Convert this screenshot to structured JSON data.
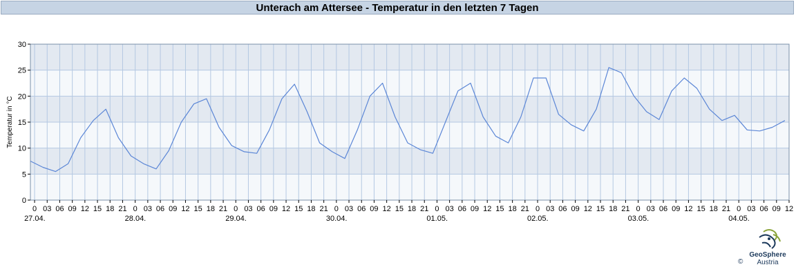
{
  "chart_data": {
    "type": "line",
    "title": "Unterach am Attersee - Temperatur in den letzten 7 Tagen",
    "ylabel": "Temperatur in °C",
    "ylim": [
      0,
      30
    ],
    "y_ticks": [
      "0",
      "5",
      "10",
      "15",
      "20",
      "25",
      "30"
    ],
    "x_hour_ticks": [
      "0",
      "03",
      "06",
      "09",
      "12",
      "15",
      "18",
      "21",
      "0",
      "03",
      "06",
      "09",
      "12",
      "15",
      "18",
      "21",
      "0",
      "03",
      "06",
      "09",
      "12",
      "15",
      "18",
      "21",
      "0",
      "03",
      "06",
      "09",
      "12",
      "15",
      "18",
      "21",
      "0",
      "03",
      "06",
      "09",
      "12",
      "15",
      "18",
      "21",
      "0",
      "03",
      "06",
      "09",
      "12",
      "15",
      "18",
      "21",
      "0",
      "03",
      "06",
      "09",
      "12",
      "15",
      "18",
      "21",
      "0",
      "03",
      "06",
      "09",
      "12"
    ],
    "x_date_labels": [
      "27.04.",
      "28.04.",
      "29.04.",
      "30.04.",
      "01.05.",
      "02.05.",
      "03.05.",
      "04.05."
    ],
    "x_range_hours": [
      -1,
      180
    ],
    "grid": true,
    "line_color": "#5b86d6",
    "x_hours": [
      -1,
      2,
      5,
      8,
      11,
      14,
      17,
      20,
      23,
      26,
      29,
      32,
      35,
      38,
      41,
      44,
      47,
      50,
      53,
      56,
      59,
      62,
      65,
      68,
      71,
      74,
      77,
      80,
      83,
      86,
      89,
      92,
      95,
      98,
      101,
      104,
      107,
      110,
      113,
      116,
      119,
      122,
      125,
      128,
      131,
      134,
      137,
      140,
      143,
      146,
      149,
      152,
      155,
      158,
      161,
      164,
      167,
      170,
      173,
      176,
      179
    ],
    "temperatures": [
      7.5,
      6.3,
      5.5,
      7,
      12,
      15.3,
      17.5,
      12,
      8.5,
      7,
      6,
      9.5,
      15,
      18.5,
      19.5,
      14,
      10.5,
      9.3,
      9,
      13.5,
      19.5,
      22.3,
      17,
      11,
      9.3,
      8,
      13.5,
      20,
      22.5,
      16,
      11,
      9.7,
      9,
      15,
      21,
      22.5,
      16,
      12.3,
      11,
      16,
      23.5,
      23.5,
      16.5,
      14.5,
      13.3,
      17.5,
      25.5,
      24.5,
      20,
      17,
      15.5,
      21,
      23.5,
      21.5,
      17.5,
      15.3,
      16.3,
      13.5,
      13.3,
      14,
      15.3
    ]
  },
  "logo": {
    "name": "GeoSphere",
    "sub": "Austria",
    "copyright": "©"
  }
}
